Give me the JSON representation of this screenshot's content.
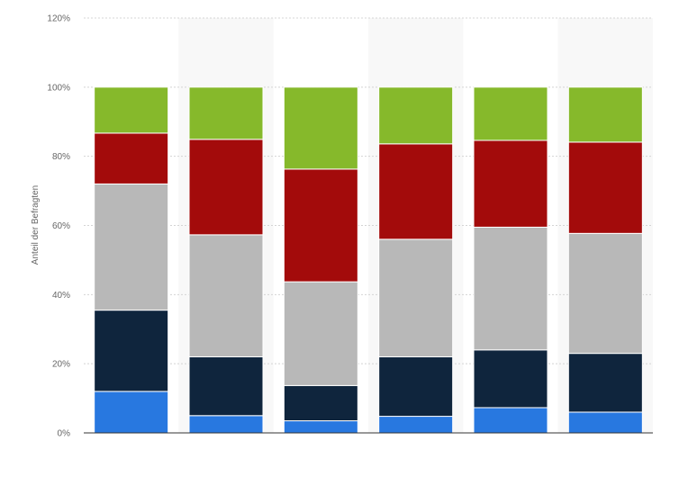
{
  "chart_data": {
    "type": "bar",
    "stacked": true,
    "title": "",
    "xlabel": "",
    "ylabel": "Anteil der Befragten",
    "ylim": [
      0,
      120
    ],
    "y_ticks": [
      0,
      20,
      40,
      60,
      80,
      100,
      120
    ],
    "y_tick_labels": [
      "0%",
      "20%",
      "40%",
      "60%",
      "80%",
      "100%",
      "120%"
    ],
    "grid": true,
    "legend": "none",
    "categories": [
      "",
      "",
      "",
      "",
      "",
      ""
    ],
    "series": [
      {
        "color": "#2878e0",
        "values": [
          12,
          5,
          3.5,
          4.8,
          7.3,
          6
        ]
      },
      {
        "color": "#0f253d",
        "values": [
          23.5,
          17,
          10.2,
          17.2,
          16.7,
          17
        ]
      },
      {
        "color": "#b8b8b8",
        "values": [
          36.5,
          35.3,
          30,
          34,
          35.5,
          34.7
        ]
      },
      {
        "color": "#a30b0b",
        "values": [
          14.7,
          27.6,
          32.6,
          27.6,
          25.1,
          26.4
        ]
      },
      {
        "color": "#86b92b",
        "values": [
          13.3,
          15.1,
          23.7,
          16.4,
          15.4,
          15.9
        ]
      }
    ]
  }
}
